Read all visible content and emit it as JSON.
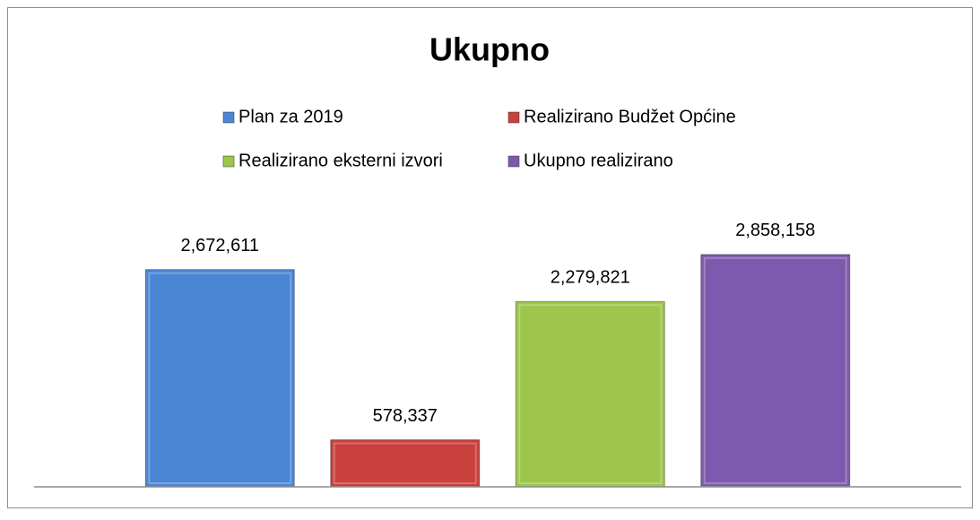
{
  "chart_data": {
    "type": "bar",
    "title": "Ukupno",
    "categories": [
      null
    ],
    "series": [
      {
        "name": "Plan za 2019",
        "color": "#4a86d4",
        "values": [
          2672611
        ],
        "value_labels": [
          "2,672,611"
        ]
      },
      {
        "name": "Realizirano Budžet Općine",
        "color": "#c9403c",
        "values": [
          578337
        ],
        "value_labels": [
          "578,337"
        ]
      },
      {
        "name": "Realizirano eksterni izvori",
        "color": "#9dc64a",
        "values": [
          2279821
        ],
        "value_labels": [
          "2,279,821"
        ]
      },
      {
        "name": "Ukupno realizirano",
        "color": "#7d5aad",
        "values": [
          2858158
        ],
        "value_labels": [
          "2,858,158"
        ]
      }
    ],
    "ylim": [
      0,
      3000000
    ],
    "legend": "top"
  }
}
